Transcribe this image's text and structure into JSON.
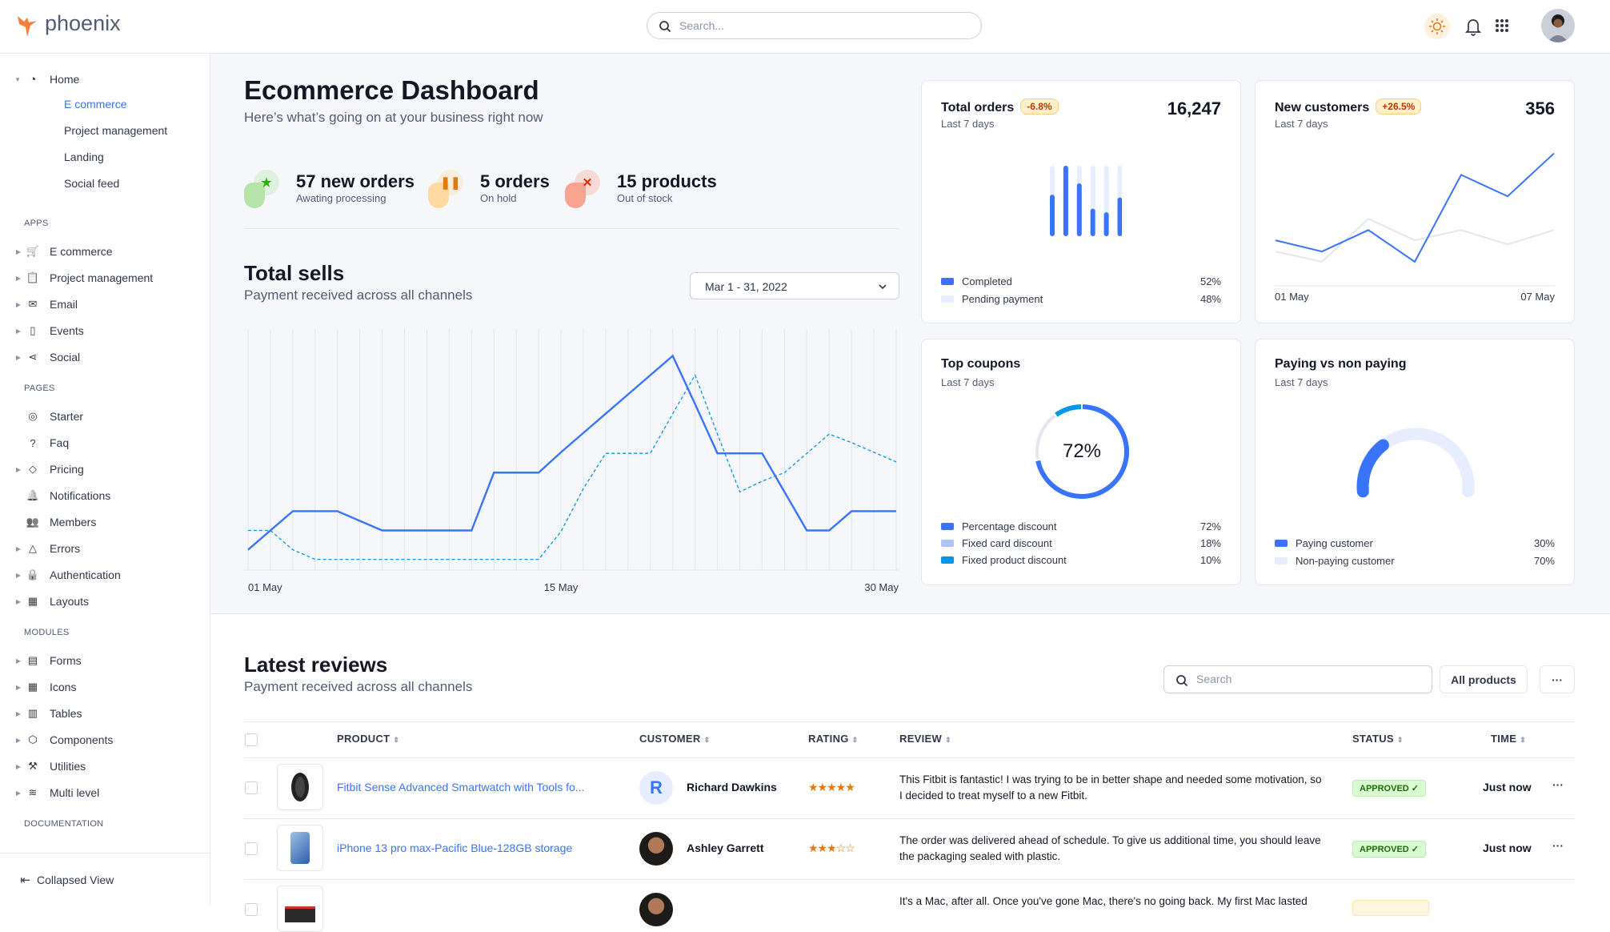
{
  "header": {
    "logo_text": "phoenix",
    "search_placeholder": "Search...",
    "icons": [
      "sun-icon",
      "bell-icon",
      "apps-grid-icon"
    ]
  },
  "sidebar": {
    "home": {
      "label": "Home",
      "children": [
        "E commerce",
        "Project management",
        "Landing",
        "Social feed"
      ],
      "active": "E commerce"
    },
    "sections": [
      {
        "title": "APPS",
        "items": [
          {
            "label": "E commerce",
            "icon": "cart-icon",
            "expandable": true
          },
          {
            "label": "Project management",
            "icon": "clipboard-icon",
            "expandable": true
          },
          {
            "label": "Email",
            "icon": "mail-icon",
            "expandable": true
          },
          {
            "label": "Events",
            "icon": "bookmark-icon",
            "expandable": true
          },
          {
            "label": "Social",
            "icon": "share-icon",
            "expandable": true
          }
        ]
      },
      {
        "title": "PAGES",
        "items": [
          {
            "label": "Starter",
            "icon": "compass-icon",
            "expandable": false
          },
          {
            "label": "Faq",
            "icon": "help-circle-icon",
            "expandable": false
          },
          {
            "label": "Pricing",
            "icon": "tag-icon",
            "expandable": true
          },
          {
            "label": "Notifications",
            "icon": "bell-icon",
            "expandable": false
          },
          {
            "label": "Members",
            "icon": "users-icon",
            "expandable": false
          },
          {
            "label": "Errors",
            "icon": "alert-triangle-icon",
            "expandable": true
          },
          {
            "label": "Authentication",
            "icon": "lock-icon",
            "expandable": true
          },
          {
            "label": "Layouts",
            "icon": "layout-icon",
            "expandable": true
          }
        ]
      },
      {
        "title": "MODULES",
        "items": [
          {
            "label": "Forms",
            "icon": "file-text-icon",
            "expandable": true
          },
          {
            "label": "Icons",
            "icon": "grid-icon",
            "expandable": true
          },
          {
            "label": "Tables",
            "icon": "columns-icon",
            "expandable": true
          },
          {
            "label": "Components",
            "icon": "package-icon",
            "expandable": true
          },
          {
            "label": "Utilities",
            "icon": "tool-icon",
            "expandable": true
          },
          {
            "label": "Multi level",
            "icon": "layers-icon",
            "expandable": true
          }
        ]
      },
      {
        "title": "DOCUMENTATION",
        "items": []
      }
    ],
    "collapse_label": "Collapsed View"
  },
  "dashboard": {
    "title": "Ecommerce Dashboard",
    "subtitle": "Here’s what’s going on at your business right now",
    "stats": [
      {
        "value": "57 new orders",
        "label": "Awating processing",
        "icon": "star-icon",
        "color": "#25b003",
        "bg": "#b5e4a8"
      },
      {
        "value": "5 orders",
        "label": "On hold",
        "icon": "pause-icon",
        "color": "#e5780b",
        "bg": "#ffd9a1"
      },
      {
        "value": "15 products",
        "label": "Out of stock",
        "icon": "x-icon",
        "color": "#ec1f00",
        "bg": "#f9a391"
      }
    ]
  },
  "total_sells": {
    "title": "Total sells",
    "subtitle": "Payment received across all channels",
    "date_range": "Mar 1 - 31, 2022"
  },
  "cards": {
    "total_orders": {
      "title": "Total orders",
      "badge": "-6.8%",
      "subtitle": "Last 7 days",
      "value": "16,247",
      "legend": [
        {
          "label": "Completed",
          "value": "52%",
          "color": "#3874ff"
        },
        {
          "label": "Pending payment",
          "value": "48%",
          "color": "#e5edff"
        }
      ]
    },
    "new_customers": {
      "title": "New customers",
      "badge": "+26.5%",
      "subtitle": "Last 7 days",
      "value": "356"
    },
    "top_coupons": {
      "title": "Top coupons",
      "subtitle": "Last 7 days",
      "center_label": "72%",
      "legend": [
        {
          "label": "Percentage discount",
          "value": "72%",
          "color": "#3874ff"
        },
        {
          "label": "Fixed card discount",
          "value": "18%",
          "color": "#adc4fa"
        },
        {
          "label": "Fixed product discount",
          "value": "10%",
          "color": "#0097eb"
        }
      ]
    },
    "paying": {
      "title": "Paying vs non paying",
      "subtitle": "Last 7 days",
      "legend": [
        {
          "label": "Paying customer",
          "value": "30%",
          "color": "#3874ff"
        },
        {
          "label": "Non-paying customer",
          "value": "70%",
          "color": "#e5edff"
        }
      ]
    }
  },
  "chart_data": [
    {
      "type": "line",
      "name_ref": "total-sells",
      "x": [
        "01 May",
        "02 May",
        "03 May",
        "04 May",
        "05 May",
        "06 May",
        "07 May",
        "08 May",
        "09 May",
        "10 May",
        "11 May",
        "12 May",
        "13 May",
        "14 May",
        "15 May",
        "16 May",
        "17 May",
        "18 May",
        "19 May",
        "20 May",
        "21 May",
        "22 May",
        "23 May",
        "24 May",
        "25 May",
        "26 May",
        "27 May",
        "28 May",
        "29 May",
        "30 May"
      ],
      "x_tick_labels": [
        "01 May",
        "15 May",
        "30 May"
      ],
      "series": [
        {
          "values": [
            19,
            37,
            55,
            55,
            55,
            46,
            37,
            37,
            37,
            37,
            37,
            91,
            91,
            91,
            110,
            128,
            146,
            164,
            182,
            200,
            155,
            109,
            109,
            109,
            73,
            37,
            37,
            55,
            55,
            55
          ],
          "style": "solid",
          "color": "#3874ff"
        },
        {
          "values": [
            37,
            37,
            19,
            10,
            10,
            10,
            10,
            10,
            10,
            10,
            10,
            10,
            10,
            10,
            36,
            76,
            109,
            109,
            109,
            146,
            182,
            127,
            73,
            83,
            91,
            109,
            127,
            119,
            110,
            101
          ],
          "style": "dashed",
          "color": "#0097eb"
        }
      ],
      "ylim": [
        0,
        225
      ],
      "grid": "vertical"
    },
    {
      "type": "bar",
      "name_ref": "total-orders",
      "categories": [
        "1",
        "2",
        "3",
        "4",
        "5",
        "6",
        "7"
      ],
      "series": [
        {
          "name": "Completed",
          "values": [
            59,
            100,
            75,
            39,
            34,
            55,
            59
          ]
        },
        {
          "name": "Pending payment",
          "values": [
            41,
            0,
            25,
            61,
            66,
            45,
            41
          ]
        }
      ],
      "stacked": true,
      "ylim": [
        0,
        100
      ]
    },
    {
      "type": "line",
      "name_ref": "new-customers",
      "x_tick_labels": [
        "01 May",
        "07 May"
      ],
      "series": [
        {
          "values": [
            43,
            32,
            53,
            22,
            107,
            86,
            128
          ],
          "color": "#3874ff"
        },
        {
          "values": [
            32,
            22,
            64,
            43,
            53,
            39,
            53
          ],
          "color": "#e3e6ed"
        }
      ],
      "ylim": [
        0,
        130
      ]
    },
    {
      "type": "pie",
      "name_ref": "top-coupons",
      "donut": true,
      "slices": [
        {
          "label": "Percentage discount",
          "value": 72
        },
        {
          "label": "Fixed card discount",
          "value": 18
        },
        {
          "label": "Fixed product discount",
          "value": 10
        }
      ]
    },
    {
      "type": "pie",
      "name_ref": "paying-gauge",
      "gauge": true,
      "slices": [
        {
          "label": "Paying customer",
          "value": 30
        },
        {
          "label": "Non-paying customer",
          "value": 70
        }
      ]
    }
  ],
  "reviews": {
    "title": "Latest reviews",
    "subtitle": "Payment received across all channels",
    "search_placeholder": "Search",
    "filter_label": "All products",
    "more_label": "···",
    "columns": [
      "PRODUCT",
      "CUSTOMER",
      "RATING",
      "REVIEW",
      "STATUS",
      "TIME"
    ],
    "rows": [
      {
        "product": "Fitbit Sense Advanced Smartwatch with Tools fo...",
        "customer": "Richard Dawkins",
        "initial": "R",
        "rating": 5,
        "stars": "★★★★★",
        "review": "This Fitbit is fantastic! I was trying to be in better shape and needed some motivation, so I decided to treat myself to a new Fitbit.",
        "status": "APPROVED ✓",
        "time": "Just now"
      },
      {
        "product": "iPhone 13 pro max-Pacific Blue-128GB storage",
        "customer": "Ashley Garrett",
        "rating": 3,
        "stars": "★★★☆☆",
        "review": "The order was delivered ahead of schedule. To give us additional time, you should leave the packaging sealed with plastic.",
        "status": "APPROVED ✓",
        "time": "Just now"
      },
      {
        "review": "It's a Mac, after all. Once you've gone Mac, there's no going back. My first Mac lasted"
      }
    ]
  }
}
